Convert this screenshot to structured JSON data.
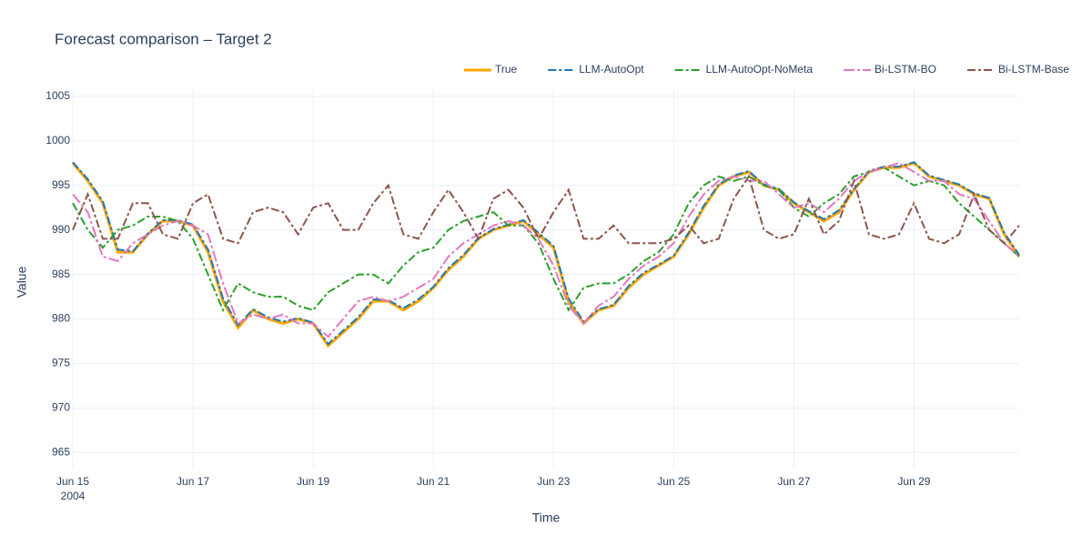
{
  "chart_data": {
    "type": "line",
    "title": "Forecast comparison – Target 2",
    "x_label": "Time",
    "y_label": "Value",
    "xlim": [
      "2004-06-15T00:00",
      "2004-06-30T18:00"
    ],
    "xticks": [
      {
        "value": "2004-06-15T00:00",
        "label": "Jun 15\n2004"
      },
      {
        "value": "2004-06-17T00:00",
        "label": "Jun 17"
      },
      {
        "value": "2004-06-19T00:00",
        "label": "Jun 19"
      },
      {
        "value": "2004-06-21T00:00",
        "label": "Jun 21"
      },
      {
        "value": "2004-06-23T00:00",
        "label": "Jun 23"
      },
      {
        "value": "2004-06-25T00:00",
        "label": "Jun 25"
      },
      {
        "value": "2004-06-27T00:00",
        "label": "Jun 27"
      },
      {
        "value": "2004-06-29T00:00",
        "label": "Jun 29"
      }
    ],
    "ylim": [
      963.2,
      1005.9
    ],
    "yticks": [
      965,
      970,
      975,
      980,
      985,
      990,
      995,
      1000,
      1005
    ],
    "grid": true,
    "legend": "top-right",
    "x": [
      "2004-06-15T00:00",
      "2004-06-15T06:00",
      "2004-06-15T12:00",
      "2004-06-15T18:00",
      "2004-06-16T00:00",
      "2004-06-16T06:00",
      "2004-06-16T12:00",
      "2004-06-16T18:00",
      "2004-06-17T00:00",
      "2004-06-17T06:00",
      "2004-06-17T12:00",
      "2004-06-17T18:00",
      "2004-06-18T00:00",
      "2004-06-18T06:00",
      "2004-06-18T12:00",
      "2004-06-18T18:00",
      "2004-06-19T00:00",
      "2004-06-19T06:00",
      "2004-06-19T12:00",
      "2004-06-19T18:00",
      "2004-06-20T00:00",
      "2004-06-20T06:00",
      "2004-06-20T12:00",
      "2004-06-20T18:00",
      "2004-06-21T00:00",
      "2004-06-21T06:00",
      "2004-06-21T12:00",
      "2004-06-21T18:00",
      "2004-06-22T00:00",
      "2004-06-22T06:00",
      "2004-06-22T12:00",
      "2004-06-22T18:00",
      "2004-06-23T00:00",
      "2004-06-23T06:00",
      "2004-06-23T12:00",
      "2004-06-23T18:00",
      "2004-06-24T00:00",
      "2004-06-24T06:00",
      "2004-06-24T12:00",
      "2004-06-24T18:00",
      "2004-06-25T00:00",
      "2004-06-25T06:00",
      "2004-06-25T12:00",
      "2004-06-25T18:00",
      "2004-06-26T00:00",
      "2004-06-26T06:00",
      "2004-06-26T12:00",
      "2004-06-26T18:00",
      "2004-06-27T00:00",
      "2004-06-27T06:00",
      "2004-06-27T12:00",
      "2004-06-27T18:00",
      "2004-06-28T00:00",
      "2004-06-28T06:00",
      "2004-06-28T12:00",
      "2004-06-28T18:00",
      "2004-06-29T00:00",
      "2004-06-29T06:00",
      "2004-06-29T12:00",
      "2004-06-29T18:00",
      "2004-06-30T00:00",
      "2004-06-30T06:00",
      "2004-06-30T12:00",
      "2004-06-30T18:00"
    ],
    "series": [
      {
        "name": "True",
        "color": "#ffa500",
        "dash": "solid",
        "values": [
          997.5,
          995.5,
          993,
          987.5,
          987.5,
          989.5,
          991,
          991,
          990.5,
          987.5,
          982,
          979,
          981,
          980,
          979.5,
          980,
          979.5,
          977,
          978.5,
          980,
          982,
          982,
          981,
          982,
          983.5,
          985.5,
          987,
          989,
          990,
          990.5,
          991,
          989.5,
          988,
          982,
          979.5,
          981,
          981.5,
          983.5,
          985,
          986,
          987,
          989.5,
          992.5,
          995,
          996,
          996.5,
          995,
          994.5,
          993,
          992,
          991,
          992,
          994.5,
          996.5,
          997,
          997,
          997.5,
          996,
          995.5,
          995,
          994,
          993.5,
          989.5,
          987
        ]
      },
      {
        "name": "LLM-AutoOpt",
        "color": "#1f77b4",
        "dash": "dashdot",
        "values": [
          997.6,
          995.7,
          993.2,
          987.8,
          987.6,
          989.6,
          991.1,
          991.1,
          990.6,
          987.8,
          982.3,
          979.3,
          981.1,
          980.2,
          979.7,
          980.1,
          979.6,
          977.2,
          978.7,
          980.2,
          982.2,
          982.1,
          981.2,
          982.2,
          983.6,
          985.7,
          987.2,
          989.1,
          990.1,
          990.6,
          991.1,
          989.7,
          988.2,
          982.3,
          979.7,
          981.1,
          981.6,
          983.7,
          985.2,
          986.1,
          987.1,
          989.7,
          992.7,
          995.1,
          996.1,
          996.6,
          995.1,
          994.6,
          993.1,
          992.1,
          991.2,
          992.2,
          994.6,
          996.6,
          997.1,
          997.1,
          997.6,
          996.1,
          995.6,
          995.1,
          994.1,
          993.6,
          989.7,
          987.2
        ]
      },
      {
        "name": "LLM-AutoOpt-NoMeta",
        "color": "#2ca02c",
        "dash": "dashdot",
        "values": [
          993,
          990,
          988,
          990,
          990.5,
          991.5,
          991.5,
          991,
          989,
          985,
          981,
          984,
          983,
          982.5,
          982.5,
          981.5,
          981,
          983,
          984,
          985,
          985,
          984,
          986,
          987.5,
          988,
          990,
          991,
          991.5,
          992,
          990.5,
          990.5,
          988.5,
          984.5,
          981,
          983.5,
          984,
          984,
          985,
          986.5,
          987.5,
          989.5,
          993,
          995,
          996,
          995.5,
          996,
          995,
          994.5,
          992.5,
          991.5,
          993,
          994,
          996,
          996.5,
          997,
          996,
          995,
          995.5,
          995,
          993,
          991.5,
          990,
          988.5,
          987
        ]
      },
      {
        "name": "Bi-LSTM-BO",
        "color": "#e377c2",
        "dash": "longdashdot",
        "values": [
          994,
          992,
          987,
          986.5,
          988.5,
          989.5,
          990.5,
          991,
          990.5,
          989.5,
          984,
          979.5,
          980.5,
          980,
          980.5,
          979.5,
          979.5,
          978,
          980,
          982,
          982.5,
          982,
          982.5,
          983.5,
          984.5,
          987,
          988.5,
          989.5,
          990.5,
          991,
          990.5,
          989,
          986,
          981.5,
          979.5,
          981.5,
          982.5,
          984.5,
          986,
          987,
          988.5,
          991.5,
          994,
          995.5,
          996,
          995.5,
          995.5,
          994,
          992.5,
          993,
          992,
          993.5,
          995.5,
          996.5,
          997,
          997.5,
          996.5,
          995.5,
          995.5,
          994,
          993.5,
          991,
          988.5,
          987
        ]
      },
      {
        "name": "Bi-LSTM-Base",
        "color": "#8c564b",
        "dash": "dashdot",
        "values": [
          990,
          994,
          989,
          989,
          993,
          993,
          989.5,
          989,
          993,
          994,
          989,
          988.5,
          992,
          992.5,
          992,
          989.5,
          992.5,
          993,
          990,
          990,
          993,
          995,
          989.5,
          989,
          992,
          994.5,
          992,
          989,
          993.5,
          994.5,
          992.5,
          989,
          992,
          994.5,
          989,
          989,
          990.5,
          988.5,
          988.5,
          988.5,
          989,
          990.5,
          988.5,
          989,
          993.5,
          996,
          990,
          989,
          989.5,
          993.5,
          989.5,
          991,
          995.5,
          989.5,
          989,
          989.5,
          993,
          989,
          988.5,
          989.5,
          994,
          990,
          988.5,
          990.5
        ]
      }
    ]
  }
}
